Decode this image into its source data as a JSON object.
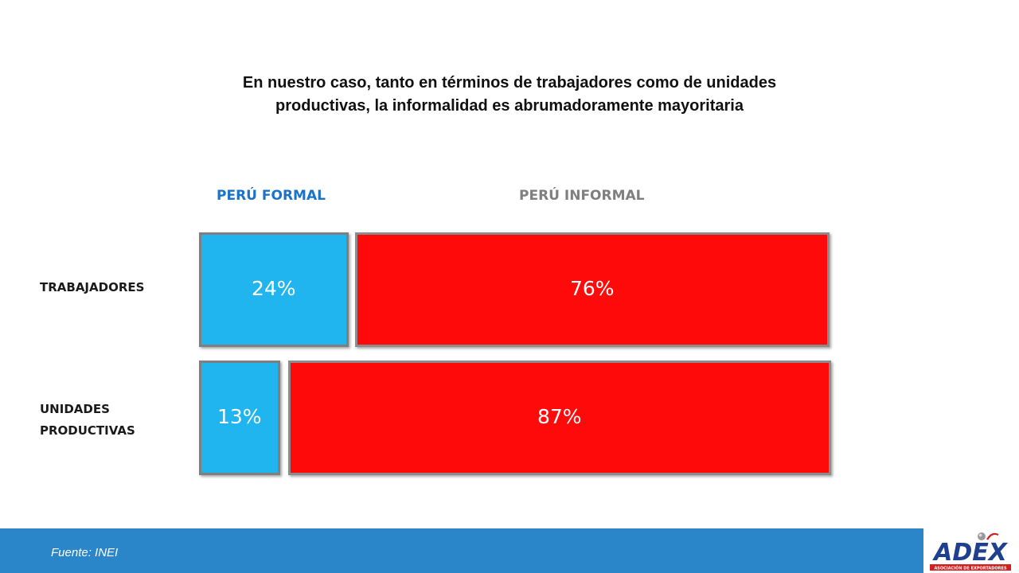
{
  "title": "En nuestro caso, tanto en términos de trabajadores como de unidades productivas, la informalidad es abrumadoramente mayoritaria",
  "chart_data": {
    "type": "bar",
    "stacked": true,
    "orientation": "horizontal",
    "categories": [
      "TRABAJADORES",
      "UNIDADES PRODUCTIVAS"
    ],
    "series": [
      {
        "name": "PERÚ FORMAL",
        "values": [
          24,
          13
        ],
        "labels": [
          "24%",
          "13%"
        ],
        "color": "#21b5ef"
      },
      {
        "name": "PERÚ INFORMAL",
        "values": [
          76,
          87
        ],
        "labels": [
          "76%",
          "87%"
        ],
        "color": "#ff0a0a"
      }
    ],
    "unit": "%",
    "xlim": [
      0,
      100
    ]
  },
  "row_labels": {
    "row1": "TRABAJADORES",
    "row2_line1": "UNIDADES",
    "row2_line2": "PRODUCTIVAS"
  },
  "footer": {
    "source": "Fuente: INEI",
    "logo_text": "ADEX",
    "logo_subtext": "ASOCIACIÓN DE EXPORTADORES"
  },
  "colors": {
    "footer_bar": "#2a86c9",
    "formal_header": "#1a73c9",
    "informal_header": "#7f7f7f"
  }
}
